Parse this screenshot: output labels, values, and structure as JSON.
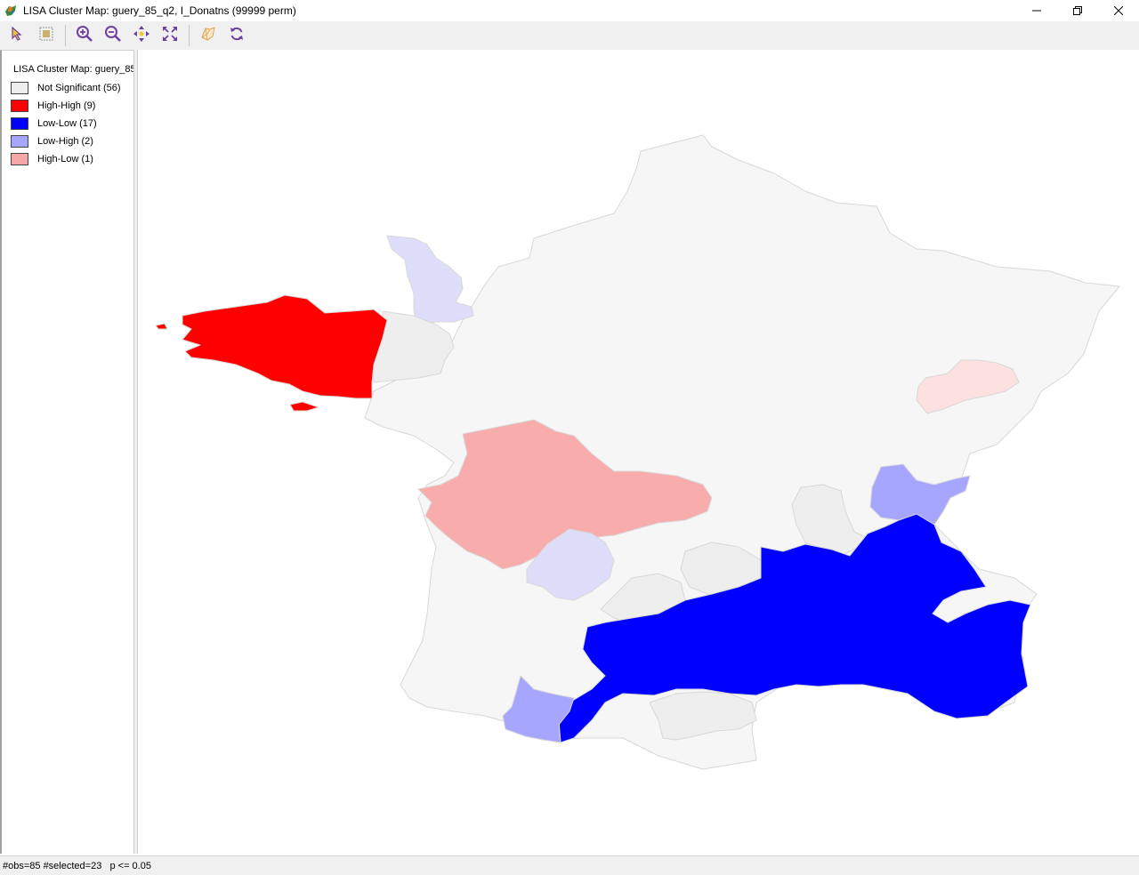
{
  "window": {
    "title": "LISA Cluster Map: guery_85_q2, I_Donatns (99999 perm)",
    "controls": {
      "minimize": "—",
      "maximize": "❐",
      "close": "✕"
    }
  },
  "toolbar": {
    "buttons": [
      {
        "name": "select-tool",
        "icon": "arrow-pointer-icon"
      },
      {
        "name": "selection-shape",
        "icon": "select-box-icon"
      },
      {
        "name": "zoom-in",
        "icon": "zoom-in-icon"
      },
      {
        "name": "zoom-out",
        "icon": "zoom-out-icon"
      },
      {
        "name": "pan",
        "icon": "pan-arrows-icon"
      },
      {
        "name": "fit-to-window",
        "icon": "fit-extent-icon"
      },
      {
        "name": "map-layers",
        "icon": "map-layers-icon"
      },
      {
        "name": "refresh",
        "icon": "refresh-icon"
      }
    ]
  },
  "legend": {
    "title": "LISA Cluster Map: guery_85",
    "items": [
      {
        "label": "Not Significant (56)",
        "color": "#eeeeee"
      },
      {
        "label": "High-High (9)",
        "color": "#ff0000"
      },
      {
        "label": "Low-Low (17)",
        "color": "#0000ff"
      },
      {
        "label": "Low-High (2)",
        "color": "#a7a6ff"
      },
      {
        "label": "High-Low (1)",
        "color": "#f4a8a8"
      }
    ]
  },
  "map": {
    "colors": {
      "not_significant": "#f6f6f6",
      "not_significant_selected": "#eeeeee",
      "high_high": "#ff0000",
      "low_low": "#0000ff",
      "low_high": "#a7a6ff",
      "low_high_faded": "#dedefa",
      "high_low": "#f9acac",
      "high_low_faded": "#fde0e0",
      "border": "#d8d8d8"
    }
  },
  "status": {
    "text": "#obs=85 #selected=23   p <= 0.05"
  }
}
